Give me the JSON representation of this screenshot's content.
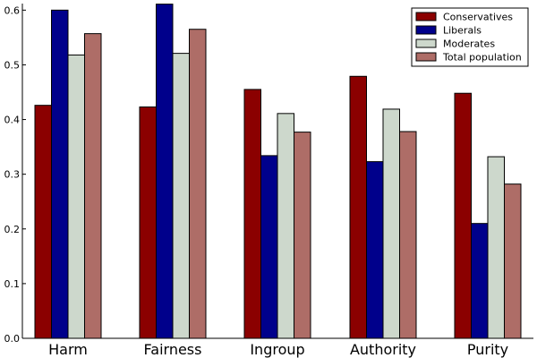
{
  "chart_data": {
    "type": "bar",
    "categories": [
      "Harm",
      "Fairness",
      "Ingroup",
      "Authority",
      "Purity"
    ],
    "series": [
      {
        "name": "Conservatives",
        "color": "#8b0000",
        "values": [
          0.426,
          0.423,
          0.455,
          0.479,
          0.448
        ]
      },
      {
        "name": "Liberals",
        "color": "#00008b",
        "values": [
          0.6,
          0.611,
          0.334,
          0.323,
          0.21
        ]
      },
      {
        "name": "Moderates",
        "color": "#cdd8cc",
        "values": [
          0.518,
          0.521,
          0.411,
          0.419,
          0.332
        ]
      },
      {
        "name": "Total population",
        "color": "#ae6d67",
        "values": [
          0.557,
          0.565,
          0.377,
          0.378,
          0.282
        ]
      }
    ],
    "yticks": [
      "0.0",
      "0.1",
      "0.2",
      "0.3",
      "0.4",
      "0.5",
      "0.6"
    ],
    "ylim": [
      0,
      0.612
    ],
    "legend_position": "top-right",
    "grid": false
  }
}
